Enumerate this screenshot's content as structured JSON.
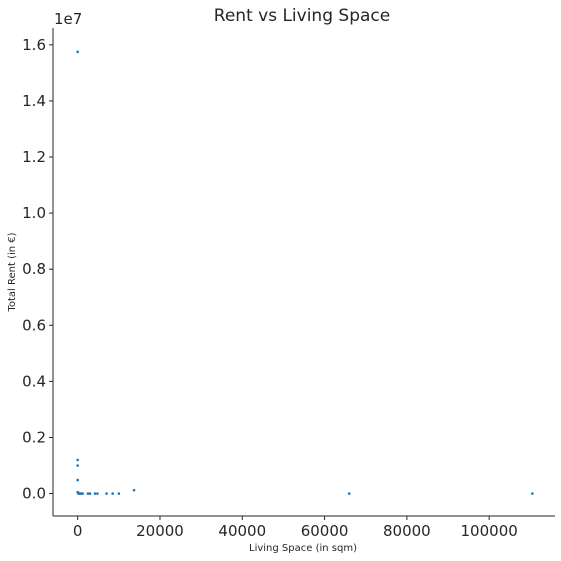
{
  "chart_data": {
    "type": "scatter",
    "title": "Rent vs Living Space",
    "xlabel": "Living Space (in sqm)",
    "ylabel": "Total Rent (in €)",
    "y_offset_text": "1e7",
    "xlim": [
      -6000,
      116000
    ],
    "ylim": [
      -800000,
      16600000
    ],
    "xticks": [
      0,
      20000,
      40000,
      60000,
      80000,
      100000
    ],
    "xtick_labels": [
      "0",
      "20000",
      "40000",
      "60000",
      "80000",
      "100000"
    ],
    "yticks": [
      0,
      2000000,
      4000000,
      6000000,
      8000000,
      10000000,
      12000000,
      14000000,
      16000000
    ],
    "ytick_labels": [
      "0.0",
      "0.2",
      "0.4",
      "0.6",
      "0.8",
      "1.0",
      "1.2",
      "1.4",
      "1.6"
    ],
    "grid": false,
    "color": "#1f77b4",
    "points": [
      {
        "x": 0,
        "y": 15750000
      },
      {
        "x": 0,
        "y": 1200000
      },
      {
        "x": 0,
        "y": 1000000
      },
      {
        "x": 0,
        "y": 480000
      },
      {
        "x": 0,
        "y": 50000
      },
      {
        "x": 100,
        "y": 20000
      },
      {
        "x": 200,
        "y": 5000
      },
      {
        "x": 400,
        "y": 0
      },
      {
        "x": 600,
        "y": 0
      },
      {
        "x": 900,
        "y": 0
      },
      {
        "x": 1200,
        "y": 0
      },
      {
        "x": 2500,
        "y": 0
      },
      {
        "x": 3000,
        "y": 0
      },
      {
        "x": 4200,
        "y": 0
      },
      {
        "x": 4800,
        "y": 0
      },
      {
        "x": 7000,
        "y": 0
      },
      {
        "x": 8500,
        "y": 0
      },
      {
        "x": 10000,
        "y": 0
      },
      {
        "x": 13700,
        "y": 120000
      },
      {
        "x": 66000,
        "y": 0
      },
      {
        "x": 110500,
        "y": 0
      }
    ]
  }
}
